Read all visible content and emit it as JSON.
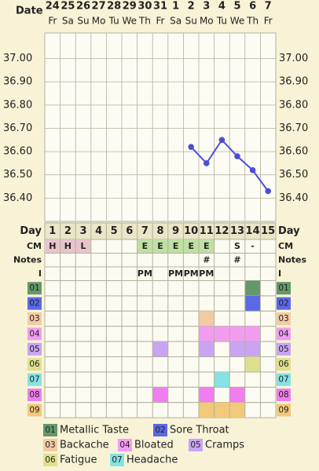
{
  "chart_data": {
    "type": "line",
    "x_label": "Date",
    "categories": [
      "24",
      "25",
      "26",
      "27",
      "28",
      "29",
      "30",
      "31",
      "1",
      "2",
      "3",
      "4",
      "5",
      "6",
      "7"
    ],
    "weekdays": [
      "Fr",
      "Sa",
      "Su",
      "Mo",
      "Tu",
      "We",
      "Th",
      "Fr",
      "Sa",
      "Su",
      "Mo",
      "Tu",
      "We",
      "Th",
      "Fr"
    ],
    "series": [
      {
        "color": "#4a4fd6",
        "values": [
          null,
          null,
          null,
          null,
          null,
          null,
          null,
          null,
          null,
          36.62,
          36.55,
          36.65,
          36.58,
          36.52,
          36.43
        ]
      }
    ],
    "ylim": [
      36.3,
      37.11
    ],
    "yticks": [
      {
        "value": 37.0,
        "label": "37.00"
      },
      {
        "value": 36.9,
        "label": "36.90"
      },
      {
        "value": 36.8,
        "label": "36.80"
      },
      {
        "value": 36.7,
        "label": "36.70"
      },
      {
        "value": 36.6,
        "label": "36.60"
      },
      {
        "value": 36.5,
        "label": "36.50"
      },
      {
        "value": 36.4,
        "label": "36.40"
      }
    ],
    "grid": true
  },
  "cycle_table": {
    "day": {
      "label": "Day",
      "values": [
        1,
        2,
        3,
        4,
        5,
        6,
        7,
        8,
        9,
        10,
        11,
        12,
        13,
        14,
        15
      ]
    },
    "cm": {
      "label": "CM",
      "values": [
        "H",
        "H",
        "L",
        null,
        null,
        null,
        "E",
        "E",
        "E",
        "E",
        "E",
        null,
        "S",
        "-",
        null
      ],
      "cell_colors": [
        "#e8c4cc",
        "#e8c4cc",
        "#e8c4cc",
        null,
        null,
        null,
        "#bfe0a4",
        "#bfe0a4",
        "#bfe0a4",
        "#bfe0a4",
        "#bfe0a4",
        null,
        null,
        null,
        null
      ]
    },
    "notes": {
      "label": "Notes",
      "values": [
        null,
        null,
        null,
        null,
        null,
        null,
        null,
        null,
        null,
        null,
        "#",
        null,
        "#",
        null,
        null
      ]
    },
    "i": {
      "label": "I",
      "values": [
        null,
        null,
        null,
        null,
        null,
        null,
        "PM",
        null,
        "PM",
        "PM",
        "PM",
        null,
        null,
        null,
        null
      ]
    }
  },
  "symptoms": [
    {
      "code": "01",
      "name": "Metallic Taste",
      "color": "#63996a",
      "days": [
        14
      ]
    },
    {
      "code": "02",
      "name": "Sore Throat",
      "color": "#5a68e6",
      "days": [
        14
      ]
    },
    {
      "code": "03",
      "name": "Backache",
      "color": "#f2cba4",
      "days": [
        11
      ]
    },
    {
      "code": "04",
      "name": "Bloated",
      "color": "#f29cf0",
      "days": [
        11,
        12,
        13,
        14
      ]
    },
    {
      "code": "05",
      "name": "Cramps",
      "color": "#c9a4f2",
      "days": [
        8,
        11,
        13,
        14
      ]
    },
    {
      "code": "06",
      "name": "Fatigue",
      "color": "#dfe08e",
      "days": [
        14
      ]
    },
    {
      "code": "07",
      "name": "Headache",
      "color": "#86e2e4",
      "days": [
        12
      ]
    },
    {
      "code": "08",
      "color": "#f07ef0",
      "days": [
        8,
        11,
        13
      ]
    },
    {
      "code": "09",
      "color": "#f2c97a",
      "days": [
        11,
        12,
        13
      ]
    }
  ]
}
